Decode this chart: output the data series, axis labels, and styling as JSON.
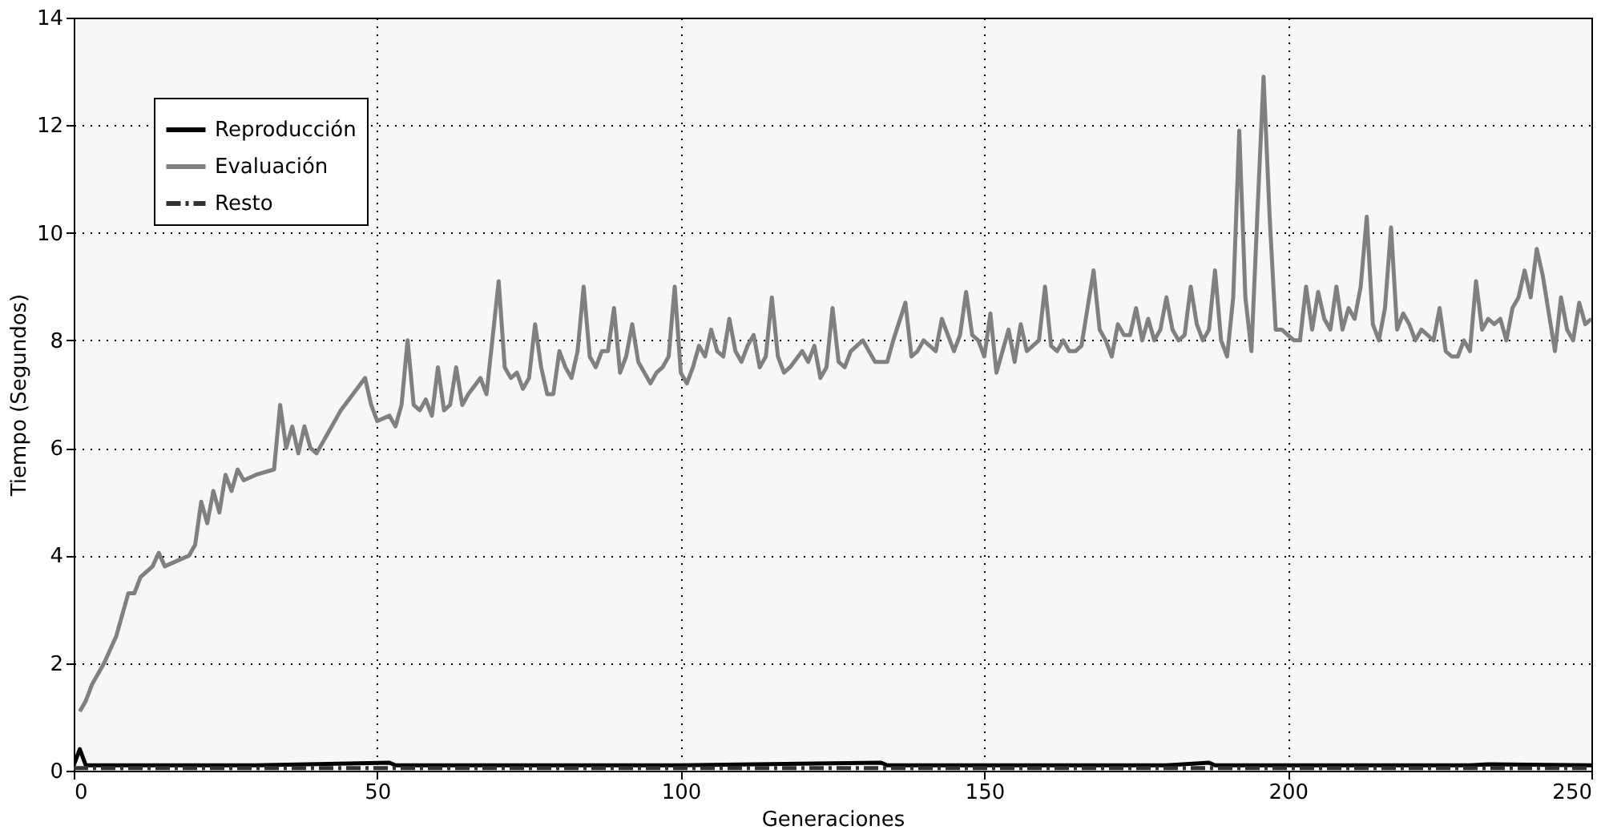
{
  "chart_data": {
    "type": "line",
    "xlabel": "Generaciones",
    "ylabel": "Tiempo   (Segundos)",
    "xlim": [
      0,
      250
    ],
    "ylim": [
      0,
      14
    ],
    "xticks": [
      0,
      50,
      100,
      150,
      200,
      250
    ],
    "yticks": [
      0,
      2,
      4,
      6,
      8,
      10,
      12,
      14
    ],
    "grid": true,
    "legend": "top left",
    "series": [
      {
        "name": "Reproducción",
        "color": "#000000",
        "line_style": "solid",
        "x": [
          0,
          1,
          2,
          4,
          30,
          52,
          53,
          60,
          100,
          133,
          134,
          150,
          180,
          187,
          188,
          200,
          230,
          233,
          250
        ],
        "values": [
          0.1,
          0.4,
          0.1,
          0.1,
          0.1,
          0.15,
          0.1,
          0.1,
          0.1,
          0.15,
          0.1,
          0.1,
          0.1,
          0.15,
          0.1,
          0.1,
          0.1,
          0.12,
          0.1
        ]
      },
      {
        "name": "Evaluación",
        "color": "#808080",
        "line_style": "solid",
        "x": [
          1,
          2,
          3,
          5,
          7,
          8,
          9,
          10,
          11,
          12,
          13,
          14,
          15,
          17,
          19,
          20,
          21,
          22,
          23,
          24,
          25,
          26,
          27,
          28,
          30,
          33,
          34,
          35,
          36,
          37,
          38,
          39,
          40,
          42,
          44,
          46,
          48,
          49,
          50,
          52,
          53,
          54,
          55,
          56,
          57,
          58,
          59,
          60,
          61,
          62,
          63,
          64,
          65,
          67,
          68,
          70,
          71,
          72,
          73,
          74,
          75,
          76,
          77,
          78,
          79,
          80,
          81,
          82,
          83,
          84,
          85,
          86,
          87,
          88,
          89,
          90,
          91,
          92,
          93,
          95,
          96,
          97,
          98,
          99,
          100,
          101,
          102,
          103,
          104,
          105,
          106,
          107,
          108,
          109,
          110,
          111,
          112,
          113,
          114,
          115,
          116,
          117,
          118,
          120,
          121,
          122,
          123,
          124,
          125,
          126,
          127,
          128,
          129,
          130,
          132,
          134,
          135,
          137,
          138,
          139,
          140,
          142,
          143,
          144,
          145,
          146,
          147,
          148,
          149,
          150,
          151,
          152,
          153,
          154,
          155,
          156,
          157,
          158,
          159,
          160,
          161,
          162,
          163,
          164,
          165,
          166,
          167,
          168,
          169,
          170,
          171,
          172,
          173,
          174,
          175,
          176,
          177,
          178,
          179,
          180,
          181,
          182,
          183,
          184,
          185,
          186,
          187,
          188,
          189,
          190,
          191,
          192,
          193,
          194,
          195,
          196,
          197,
          198,
          199,
          200,
          201,
          202,
          203,
          204,
          205,
          206,
          207,
          208,
          209,
          210,
          211,
          212,
          213,
          214,
          215,
          216,
          217,
          218,
          219,
          220,
          221,
          222,
          223,
          224,
          225,
          226,
          227,
          228,
          229,
          230,
          231,
          232,
          233,
          234,
          235,
          236,
          237,
          238,
          239,
          240,
          241,
          242,
          243,
          244,
          245,
          246,
          247,
          248,
          249,
          250
        ],
        "values": [
          1.1,
          1.3,
          1.6,
          2.0,
          2.5,
          2.9,
          3.3,
          3.3,
          3.6,
          3.7,
          3.8,
          4.05,
          3.8,
          3.9,
          4.0,
          4.2,
          5.0,
          4.6,
          5.2,
          4.8,
          5.5,
          5.2,
          5.6,
          5.4,
          5.5,
          5.6,
          6.8,
          6.0,
          6.4,
          5.9,
          6.4,
          6.0,
          5.9,
          6.3,
          6.7,
          7.0,
          7.3,
          6.8,
          6.5,
          6.6,
          6.4,
          6.8,
          8.0,
          6.8,
          6.7,
          6.9,
          6.6,
          7.5,
          6.7,
          6.8,
          7.5,
          6.8,
          7.0,
          7.3,
          7.0,
          9.1,
          7.5,
          7.3,
          7.4,
          7.1,
          7.3,
          8.3,
          7.5,
          7.0,
          7.0,
          7.8,
          7.5,
          7.3,
          7.8,
          9.0,
          7.7,
          7.5,
          7.8,
          7.8,
          8.6,
          7.4,
          7.7,
          8.3,
          7.6,
          7.2,
          7.4,
          7.5,
          7.7,
          9.0,
          7.4,
          7.2,
          7.5,
          7.9,
          7.7,
          8.2,
          7.8,
          7.7,
          8.4,
          7.8,
          7.6,
          7.9,
          8.1,
          7.5,
          7.7,
          8.8,
          7.7,
          7.4,
          7.5,
          7.8,
          7.6,
          7.9,
          7.3,
          7.5,
          8.6,
          7.6,
          7.5,
          7.8,
          7.9,
          8.0,
          7.6,
          7.6,
          8.0,
          8.7,
          7.7,
          7.8,
          8.0,
          7.8,
          8.4,
          8.1,
          7.8,
          8.1,
          8.9,
          8.1,
          8.0,
          7.7,
          8.5,
          7.4,
          7.8,
          8.2,
          7.6,
          8.3,
          7.8,
          7.9,
          8.0,
          9.0,
          7.9,
          7.8,
          8.0,
          7.8,
          7.8,
          7.9,
          8.6,
          9.3,
          8.2,
          8.0,
          7.7,
          8.3,
          8.1,
          8.1,
          8.6,
          8.0,
          8.4,
          8.0,
          8.2,
          8.8,
          8.2,
          8.0,
          8.1,
          9.0,
          8.3,
          8.0,
          8.2,
          9.3,
          8.0,
          7.7,
          8.8,
          11.9,
          8.8,
          7.8,
          10.4,
          12.9,
          10.3,
          8.2,
          8.2,
          8.1,
          8.0,
          8.0,
          9.0,
          8.2,
          8.9,
          8.4,
          8.2,
          9.0,
          8.2,
          8.6,
          8.4,
          9.0,
          10.3,
          8.3,
          8.0,
          8.6,
          10.1,
          8.2,
          8.5,
          8.3,
          8.0,
          8.2,
          8.1,
          8.0,
          8.6,
          7.8,
          7.7,
          7.7,
          8.0,
          7.8,
          9.1,
          8.2,
          8.4,
          8.3,
          8.4,
          8.0,
          8.6,
          8.8,
          9.3,
          8.8,
          9.7,
          9.2,
          8.5,
          7.8,
          8.8,
          8.2,
          8.0,
          8.7,
          8.3,
          8.4
        ]
      },
      {
        "name": "Resto",
        "color": "#333333",
        "line_style": "dashdot",
        "x": [
          0,
          50,
          100,
          150,
          200,
          250
        ],
        "values": [
          0.05,
          0.05,
          0.05,
          0.05,
          0.05,
          0.05
        ]
      }
    ]
  }
}
